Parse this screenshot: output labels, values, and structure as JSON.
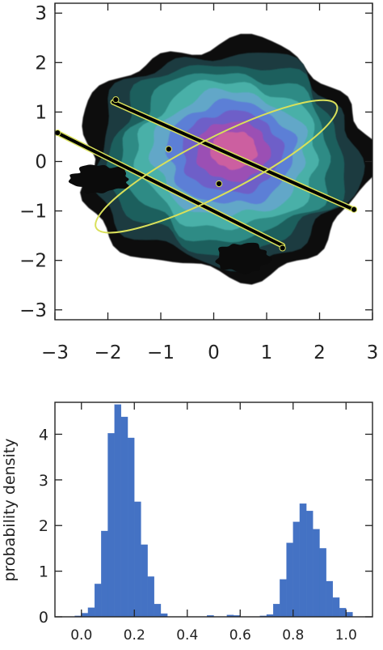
{
  "chart_data": [
    {
      "type": "contour",
      "title": "",
      "xlabel": "",
      "ylabel": "",
      "xlim": [
        -3,
        3
      ],
      "ylim": [
        -3.2,
        3.2
      ],
      "xticks": [
        -3,
        -2,
        -1,
        0,
        1,
        2,
        3
      ],
      "yticks": [
        -3,
        -2,
        -1,
        0,
        1,
        2,
        3
      ],
      "xtick_labels": [
        "−3",
        "−2",
        "−1",
        "0",
        "1",
        "2",
        "3"
      ],
      "ytick_labels": [
        "−3",
        "−2",
        "−1",
        "0",
        "1",
        "2",
        "3"
      ],
      "density": {
        "center": [
          0.2,
          0.05
        ],
        "peak": [
          0.4,
          0.25
        ],
        "levels": 9,
        "colors": [
          "#0b0b0b",
          "#1d3b40",
          "#1f5e5d",
          "#2f8b85",
          "#49b0a8",
          "#62a7c8",
          "#5b7fd6",
          "#6e5fc8",
          "#9b4fb4",
          "#cc5fa0"
        ]
      },
      "overlay_lines": [
        {
          "from": [
            -1.9,
            1.2
          ],
          "to": [
            2.6,
            -0.95
          ],
          "color": "#000000"
        },
        {
          "from": [
            -2.9,
            0.55
          ],
          "to": [
            1.3,
            -1.7
          ],
          "color": "#000000"
        }
      ],
      "ellipse": {
        "center": [
          0.05,
          -0.1
        ],
        "semi_major": 2.55,
        "semi_minor": 0.22,
        "angle_deg": -27,
        "color": "#d9e05a"
      },
      "points": [
        {
          "x": -0.85,
          "y": 0.25
        },
        {
          "x": 0.1,
          "y": -0.45
        },
        {
          "x": 2.65,
          "y": -0.97
        },
        {
          "x": -2.95,
          "y": 0.58
        },
        {
          "x": 1.3,
          "y": -1.75
        },
        {
          "x": -1.85,
          "y": 1.25
        }
      ]
    },
    {
      "type": "histogram",
      "title": "",
      "xlabel": "",
      "ylabel": "probability density",
      "xlim": [
        -0.1,
        1.1
      ],
      "ylim": [
        0,
        4.7
      ],
      "xticks": [
        0.0,
        0.2,
        0.4,
        0.6,
        0.8,
        1.0
      ],
      "yticks": [
        0,
        1,
        2,
        3,
        4
      ],
      "xtick_labels": [
        "0.0",
        "0.2",
        "0.4",
        "0.6",
        "0.8",
        "1.0"
      ],
      "ytick_labels": [
        "0",
        "1",
        "2",
        "3",
        "4"
      ],
      "bar_color": "#4472c4",
      "bin_width": 0.025,
      "bins": [
        {
          "x": -0.025,
          "value": 0.02
        },
        {
          "x": 0.0,
          "value": 0.08
        },
        {
          "x": 0.025,
          "value": 0.2
        },
        {
          "x": 0.05,
          "value": 0.72
        },
        {
          "x": 0.075,
          "value": 1.88
        },
        {
          "x": 0.1,
          "value": 4.02
        },
        {
          "x": 0.125,
          "value": 4.65
        },
        {
          "x": 0.15,
          "value": 4.38
        },
        {
          "x": 0.175,
          "value": 3.92
        },
        {
          "x": 0.2,
          "value": 2.52
        },
        {
          "x": 0.225,
          "value": 1.58
        },
        {
          "x": 0.25,
          "value": 0.88
        },
        {
          "x": 0.275,
          "value": 0.28
        },
        {
          "x": 0.3,
          "value": 0.07
        },
        {
          "x": 0.475,
          "value": 0.03
        },
        {
          "x": 0.55,
          "value": 0.04
        },
        {
          "x": 0.575,
          "value": 0.03
        },
        {
          "x": 0.675,
          "value": 0.02
        },
        {
          "x": 0.7,
          "value": 0.05
        },
        {
          "x": 0.725,
          "value": 0.28
        },
        {
          "x": 0.75,
          "value": 0.82
        },
        {
          "x": 0.775,
          "value": 1.62
        },
        {
          "x": 0.8,
          "value": 2.08
        },
        {
          "x": 0.825,
          "value": 2.48
        },
        {
          "x": 0.85,
          "value": 2.32
        },
        {
          "x": 0.875,
          "value": 1.92
        },
        {
          "x": 0.9,
          "value": 1.5
        },
        {
          "x": 0.925,
          "value": 0.78
        },
        {
          "x": 0.95,
          "value": 0.42
        },
        {
          "x": 0.975,
          "value": 0.19
        },
        {
          "x": 1.0,
          "value": 0.1
        }
      ]
    }
  ]
}
